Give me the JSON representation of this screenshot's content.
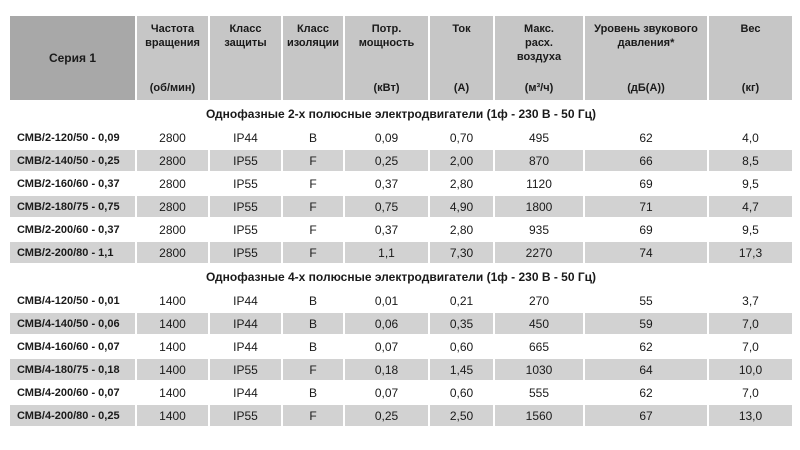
{
  "table": {
    "columns": [
      {
        "label": "Серия 1",
        "units": ""
      },
      {
        "label": "Частота\nвращения",
        "units": "(об/мин)"
      },
      {
        "label": "Класс\nзащиты",
        "units": ""
      },
      {
        "label": "Класс\nизоляции",
        "units": ""
      },
      {
        "label": "Потр.\nмощность",
        "units": "(кВт)"
      },
      {
        "label": "Ток",
        "units": "(А)"
      },
      {
        "label": "Макс.\nрасх.\nвоздуха",
        "units": "(м³/ч)"
      },
      {
        "label": "Уровень звукового\nдавления*",
        "units": "(дБ(А))"
      },
      {
        "label": "Вес",
        "units": "(кг)"
      }
    ],
    "sections": [
      {
        "title": "Однофазные 2-х полюсные электродвигатели (1ф - 230 В - 50 Гц)",
        "rows": [
          [
            "СМВ/2-120/50 - 0,09",
            "2800",
            "IP44",
            "B",
            "0,09",
            "0,70",
            "495",
            "62",
            "4,0"
          ],
          [
            "СМВ/2-140/50 - 0,25",
            "2800",
            "IP55",
            "F",
            "0,25",
            "2,00",
            "870",
            "66",
            "8,5"
          ],
          [
            "СМВ/2-160/60 - 0,37",
            "2800",
            "IP55",
            "F",
            "0,37",
            "2,80",
            "1120",
            "69",
            "9,5"
          ],
          [
            "СМВ/2-180/75 - 0,75",
            "2800",
            "IP55",
            "F",
            "0,75",
            "4,90",
            "1800",
            "71",
            "4,7"
          ],
          [
            "СМВ/2-200/60 - 0,37",
            "2800",
            "IP55",
            "F",
            "0,37",
            "2,80",
            "935",
            "69",
            "9,5"
          ],
          [
            "СМВ/2-200/80 - 1,1",
            "2800",
            "IP55",
            "F",
            "1,1",
            "7,30",
            "2270",
            "74",
            "17,3"
          ]
        ]
      },
      {
        "title": "Однофазные 4-х полюсные электродвигатели (1ф - 230 В - 50 Гц)",
        "rows": [
          [
            "СМВ/4-120/50 - 0,01",
            "1400",
            "IP44",
            "B",
            "0,01",
            "0,21",
            "270",
            "55",
            "3,7"
          ],
          [
            "СМВ/4-140/50 - 0,06",
            "1400",
            "IP44",
            "B",
            "0,06",
            "0,35",
            "450",
            "59",
            "7,0"
          ],
          [
            "СМВ/4-160/60 - 0,07",
            "1400",
            "IP44",
            "B",
            "0,07",
            "0,60",
            "665",
            "62",
            "7,0"
          ],
          [
            "СМВ/4-180/75 - 0,18",
            "1400",
            "IP55",
            "F",
            "0,18",
            "1,45",
            "1030",
            "64",
            "10,0"
          ],
          [
            "СМВ/4-200/60 - 0,07",
            "1400",
            "IP44",
            "B",
            "0,07",
            "0,60",
            "555",
            "62",
            "7,0"
          ],
          [
            "СМВ/4-200/80 - 0,25",
            "1400",
            "IP55",
            "F",
            "0,25",
            "2,50",
            "1560",
            "67",
            "13,0"
          ]
        ]
      }
    ]
  },
  "colors": {
    "header_bg": "#c6c6c6",
    "series_header_bg": "#a8a8a8",
    "row_alt_bg": "#d2d2d2",
    "row_bg": "#ffffff"
  }
}
